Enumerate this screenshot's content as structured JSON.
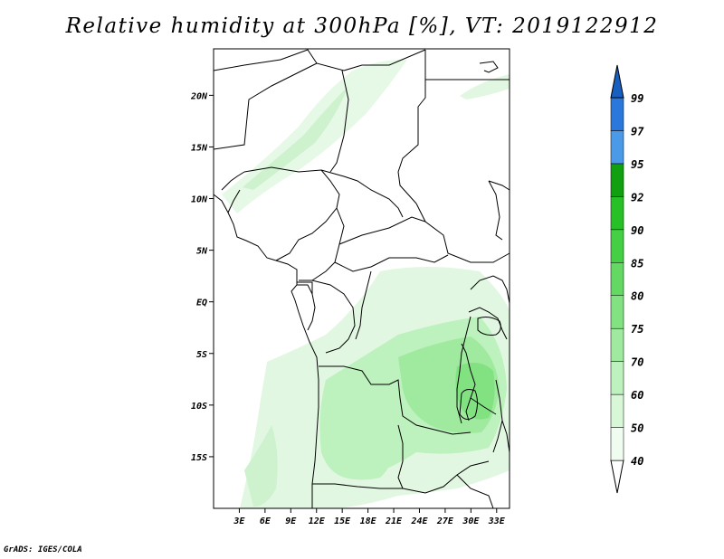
{
  "title": "Relative humidity at 300hPa [%], VT: 2019122912",
  "credit": "GrADS: IGES/COLA",
  "map": {
    "lon_range": [
      0,
      34.5
    ],
    "lat_range": [
      -20,
      24.5
    ],
    "lon_ticks": [
      "3E",
      "6E",
      "9E",
      "12E",
      "15E",
      "18E",
      "21E",
      "24E",
      "27E",
      "30E",
      "33E"
    ],
    "lon_tick_values": [
      3,
      6,
      9,
      12,
      15,
      18,
      21,
      24,
      27,
      30,
      33
    ],
    "lat_ticks": [
      "20N",
      "15N",
      "10N",
      "5N",
      "EQ",
      "5S",
      "10S",
      "15S"
    ],
    "lat_tick_values": [
      20,
      15,
      10,
      5,
      0,
      -5,
      -10,
      -15
    ]
  },
  "colorbar": {
    "levels": [
      "40",
      "50",
      "60",
      "70",
      "75",
      "80",
      "85",
      "90",
      "92",
      "95",
      "97",
      "99"
    ],
    "colors": [
      "#f0fcf0",
      "#d7f7d7",
      "#bdf1bd",
      "#9fea9f",
      "#82e282",
      "#63d963",
      "#45cf45",
      "#27c027",
      "#10a010",
      "#4a9ae8",
      "#2a78dc",
      "#1a5fc8"
    ],
    "under_color": "#ffffff",
    "over_color": "#1860c0"
  }
}
